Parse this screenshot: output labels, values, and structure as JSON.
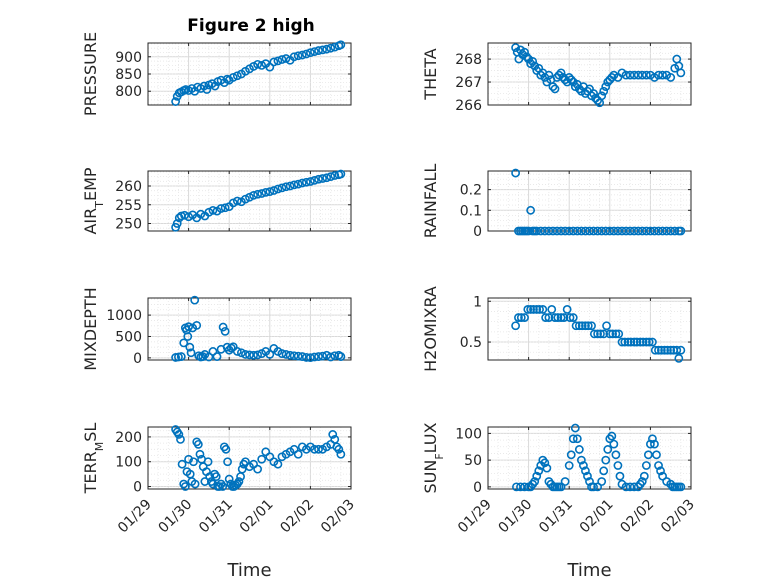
{
  "figure": {
    "title": "Figure 2 high",
    "marker_color": "#0072BD"
  },
  "chart_data": [
    {
      "id": "pressure",
      "type": "scatter",
      "ylabel": "PRESSURE",
      "ylabel_sub": "",
      "title": "Figure 2 high",
      "xlabel": "",
      "show_xticks": false,
      "xlim": [
        0,
        5
      ],
      "ylim": [
        760,
        940
      ],
      "yticks": [
        800,
        850,
        900
      ],
      "x": [
        0.68,
        0.72,
        0.77,
        0.82,
        0.88,
        0.93,
        1.0,
        1.08,
        1.15,
        1.22,
        1.3,
        1.38,
        1.45,
        1.5,
        1.58,
        1.65,
        1.72,
        1.8,
        1.88,
        1.95,
        2.0,
        2.1,
        2.2,
        2.3,
        2.4,
        2.5,
        2.6,
        2.7,
        2.8,
        2.9,
        3.0,
        3.1,
        3.2,
        3.3,
        3.4,
        3.5,
        3.6,
        3.7,
        3.8,
        3.9,
        4.0,
        4.1,
        4.2,
        4.3,
        4.4,
        4.5,
        4.6,
        4.7,
        4.75
      ],
      "y": [
        770,
        785,
        795,
        798,
        802,
        805,
        802,
        808,
        800,
        812,
        808,
        815,
        805,
        818,
        822,
        815,
        828,
        832,
        825,
        835,
        832,
        840,
        845,
        850,
        858,
        865,
        872,
        878,
        875,
        880,
        870,
        885,
        888,
        892,
        895,
        890,
        900,
        903,
        905,
        908,
        912,
        915,
        918,
        920,
        922,
        925,
        928,
        932,
        935
      ]
    },
    {
      "id": "theta",
      "type": "scatter",
      "ylabel": "THETA",
      "ylabel_sub": "",
      "title": "",
      "xlabel": "",
      "show_xticks": false,
      "xlim": [
        0,
        5
      ],
      "ylim": [
        266,
        268.7
      ],
      "yticks": [
        266,
        267,
        268
      ],
      "x": [
        0.68,
        0.72,
        0.76,
        0.8,
        0.85,
        0.9,
        0.95,
        1.0,
        1.05,
        1.1,
        1.15,
        1.2,
        1.25,
        1.3,
        1.35,
        1.4,
        1.45,
        1.5,
        1.55,
        1.6,
        1.65,
        1.7,
        1.75,
        1.8,
        1.85,
        1.9,
        1.95,
        2.0,
        2.05,
        2.1,
        2.15,
        2.2,
        2.25,
        2.3,
        2.35,
        2.4,
        2.45,
        2.5,
        2.55,
        2.6,
        2.65,
        2.7,
        2.75,
        2.8,
        2.85,
        2.9,
        2.95,
        3.0,
        3.05,
        3.1,
        3.2,
        3.3,
        3.4,
        3.5,
        3.6,
        3.7,
        3.8,
        3.9,
        4.0,
        4.1,
        4.2,
        4.3,
        4.4,
        4.5,
        4.6,
        4.65,
        4.7,
        4.75
      ],
      "y": [
        268.5,
        268.3,
        268.0,
        268.4,
        268.2,
        268.3,
        268.1,
        268.0,
        267.8,
        267.9,
        267.7,
        267.5,
        267.6,
        267.3,
        267.4,
        267.2,
        267.0,
        267.3,
        267.1,
        266.8,
        266.7,
        267.2,
        267.3,
        267.4,
        267.2,
        267.1,
        267.0,
        267.2,
        267.1,
        267.0,
        266.8,
        266.9,
        266.7,
        266.6,
        266.8,
        266.5,
        266.6,
        266.7,
        266.4,
        266.5,
        266.3,
        266.2,
        266.1,
        266.4,
        266.6,
        266.8,
        267.0,
        267.1,
        267.2,
        267.3,
        267.2,
        267.4,
        267.3,
        267.3,
        267.3,
        267.3,
        267.3,
        267.3,
        267.3,
        267.2,
        267.3,
        267.3,
        267.3,
        267.2,
        267.6,
        268.0,
        267.7,
        267.4
      ]
    },
    {
      "id": "airtemp",
      "type": "scatter",
      "ylabel": "AIR",
      "ylabel_sub": "T",
      "ylabel_rest": "EMP",
      "title": "",
      "xlabel": "",
      "show_xticks": false,
      "xlim": [
        0,
        5
      ],
      "ylim": [
        248,
        264
      ],
      "yticks": [
        250,
        255,
        260
      ],
      "x": [
        0.68,
        0.72,
        0.77,
        0.82,
        0.9,
        1.0,
        1.1,
        1.2,
        1.3,
        1.4,
        1.5,
        1.6,
        1.7,
        1.8,
        1.9,
        2.0,
        2.1,
        2.2,
        2.3,
        2.4,
        2.5,
        2.6,
        2.7,
        2.8,
        2.9,
        3.0,
        3.1,
        3.2,
        3.3,
        3.4,
        3.5,
        3.6,
        3.7,
        3.8,
        3.9,
        4.0,
        4.1,
        4.2,
        4.3,
        4.4,
        4.5,
        4.6,
        4.7,
        4.75
      ],
      "y": [
        249,
        250,
        251.5,
        252,
        252.2,
        251.8,
        252.3,
        251.5,
        252.5,
        252,
        253,
        253.5,
        253.3,
        254,
        254.2,
        254.5,
        255.5,
        256,
        255.8,
        256.5,
        257,
        257.5,
        257.8,
        258,
        258.3,
        258.5,
        258.8,
        259.2,
        259.5,
        259.8,
        260,
        260.3,
        260.5,
        260.8,
        261,
        261.2,
        261.5,
        261.8,
        262,
        262.2,
        262.5,
        262.8,
        263,
        263.2
      ]
    },
    {
      "id": "rainfall",
      "type": "scatter",
      "ylabel": "RAINFALL",
      "ylabel_sub": "",
      "title": "",
      "xlabel": "",
      "show_xticks": false,
      "xlim": [
        0,
        5
      ],
      "ylim": [
        0,
        0.29
      ],
      "yticks": [
        0,
        0.1,
        0.2
      ],
      "ytick_labels": [
        "0",
        "0.1",
        "0.2"
      ],
      "x": [
        0.68,
        0.75,
        0.8,
        0.85,
        0.9,
        0.95,
        1.0,
        1.05,
        1.1,
        1.15,
        1.2,
        1.3,
        1.4,
        1.5,
        1.6,
        1.7,
        1.8,
        1.9,
        2.0,
        2.1,
        2.2,
        2.3,
        2.4,
        2.5,
        2.6,
        2.7,
        2.8,
        2.9,
        3.0,
        3.1,
        3.2,
        3.3,
        3.4,
        3.5,
        3.6,
        3.7,
        3.8,
        3.9,
        4.0,
        4.1,
        4.2,
        4.3,
        4.4,
        4.5,
        4.6,
        4.7,
        4.75
      ],
      "y": [
        0.28,
        0,
        0,
        0,
        0,
        0,
        0,
        0.1,
        0,
        0,
        0,
        0,
        0,
        0,
        0,
        0,
        0,
        0,
        0,
        0,
        0,
        0,
        0,
        0,
        0,
        0,
        0,
        0,
        0,
        0,
        0,
        0,
        0,
        0,
        0,
        0,
        0,
        0,
        0,
        0,
        0,
        0,
        0,
        0,
        0,
        0,
        0
      ]
    },
    {
      "id": "mixdepth",
      "type": "scatter",
      "ylabel": "MIXDEPTH",
      "ylabel_sub": "",
      "title": "",
      "xlabel": "",
      "show_xticks": false,
      "xlim": [
        0,
        5
      ],
      "ylim": [
        -50,
        1400
      ],
      "yticks": [
        0,
        500,
        1000
      ],
      "x": [
        0.68,
        0.75,
        0.82,
        0.88,
        0.92,
        0.95,
        0.98,
        1.0,
        1.03,
        1.06,
        1.1,
        1.15,
        1.2,
        1.25,
        1.3,
        1.35,
        1.4,
        1.5,
        1.6,
        1.7,
        1.8,
        1.85,
        1.9,
        1.95,
        2.0,
        2.05,
        2.1,
        2.2,
        2.3,
        2.4,
        2.5,
        2.6,
        2.7,
        2.8,
        2.9,
        3.0,
        3.1,
        3.2,
        3.3,
        3.4,
        3.5,
        3.6,
        3.7,
        3.8,
        3.9,
        4.0,
        4.1,
        4.2,
        4.3,
        4.4,
        4.5,
        4.6,
        4.7,
        4.75
      ],
      "y": [
        10,
        20,
        30,
        350,
        700,
        650,
        500,
        730,
        250,
        120,
        700,
        1350,
        760,
        50,
        20,
        30,
        80,
        20,
        150,
        30,
        200,
        720,
        620,
        250,
        180,
        230,
        260,
        150,
        120,
        80,
        70,
        60,
        70,
        100,
        150,
        80,
        220,
        150,
        100,
        80,
        60,
        50,
        40,
        30,
        10,
        5,
        20,
        30,
        40,
        60,
        20,
        50,
        60,
        30
      ]
    },
    {
      "id": "h2omixra",
      "type": "scatter",
      "ylabel": "H2OMIXRA",
      "ylabel_sub": "",
      "title": "",
      "xlabel": "",
      "show_xticks": false,
      "xlim": [
        0,
        5
      ],
      "ylim": [
        0.28,
        1.04
      ],
      "yticks": [
        0.5,
        1
      ],
      "ytick_labels": [
        "0.5",
        "1"
      ],
      "x": [
        0.68,
        0.75,
        0.82,
        0.9,
        0.98,
        1.05,
        1.12,
        1.2,
        1.27,
        1.35,
        1.42,
        1.5,
        1.57,
        1.65,
        1.72,
        1.8,
        1.87,
        1.95,
        2.02,
        2.1,
        2.17,
        2.25,
        2.32,
        2.4,
        2.47,
        2.55,
        2.62,
        2.7,
        2.77,
        2.85,
        2.92,
        3.0,
        3.07,
        3.15,
        3.22,
        3.3,
        3.37,
        3.45,
        3.52,
        3.6,
        3.67,
        3.75,
        3.82,
        3.9,
        3.97,
        4.05,
        4.12,
        4.2,
        4.27,
        4.35,
        4.42,
        4.5,
        4.57,
        4.65,
        4.7,
        4.75
      ],
      "y": [
        0.7,
        0.8,
        0.8,
        0.8,
        0.9,
        0.9,
        0.9,
        0.9,
        0.9,
        0.9,
        0.8,
        0.8,
        0.9,
        0.8,
        0.8,
        0.8,
        0.8,
        0.9,
        0.8,
        0.8,
        0.7,
        0.7,
        0.7,
        0.7,
        0.7,
        0.7,
        0.6,
        0.6,
        0.6,
        0.6,
        0.7,
        0.6,
        0.6,
        0.6,
        0.6,
        0.5,
        0.5,
        0.5,
        0.5,
        0.5,
        0.5,
        0.5,
        0.5,
        0.5,
        0.5,
        0.5,
        0.4,
        0.4,
        0.4,
        0.4,
        0.4,
        0.4,
        0.4,
        0.4,
        0.3,
        0.4
      ]
    },
    {
      "id": "terrmsl",
      "type": "scatter",
      "ylabel": "TERR",
      "ylabel_sub": "M",
      "ylabel_rest": "SL",
      "title": "",
      "xlabel": "Time",
      "show_xticks": true,
      "xlim": [
        0,
        5
      ],
      "ylim": [
        -10,
        240
      ],
      "yticks": [
        0,
        100,
        200
      ],
      "x": [
        0.68,
        0.72,
        0.76,
        0.8,
        0.84,
        0.88,
        0.92,
        0.96,
        1.0,
        1.04,
        1.08,
        1.12,
        1.16,
        1.2,
        1.24,
        1.28,
        1.32,
        1.36,
        1.4,
        1.44,
        1.48,
        1.52,
        1.56,
        1.6,
        1.64,
        1.68,
        1.72,
        1.76,
        1.8,
        1.84,
        1.88,
        1.92,
        1.96,
        2.0,
        2.04,
        2.08,
        2.12,
        2.16,
        2.2,
        2.24,
        2.28,
        2.32,
        2.36,
        2.4,
        2.5,
        2.6,
        2.7,
        2.8,
        2.9,
        3.0,
        3.1,
        3.2,
        3.3,
        3.4,
        3.5,
        3.6,
        3.7,
        3.8,
        3.9,
        4.0,
        4.1,
        4.2,
        4.3,
        4.4,
        4.5,
        4.55,
        4.6,
        4.65,
        4.7,
        4.75
      ],
      "y": [
        230,
        220,
        210,
        190,
        90,
        10,
        0,
        60,
        110,
        50,
        20,
        100,
        10,
        180,
        170,
        130,
        110,
        80,
        20,
        60,
        100,
        40,
        20,
        10,
        50,
        40,
        0,
        0,
        10,
        0,
        160,
        150,
        100,
        30,
        10,
        0,
        0,
        5,
        10,
        20,
        40,
        70,
        90,
        100,
        80,
        90,
        70,
        110,
        140,
        120,
        100,
        90,
        120,
        130,
        140,
        150,
        130,
        160,
        150,
        160,
        150,
        150,
        150,
        160,
        170,
        210,
        190,
        160,
        150,
        130
      ]
    },
    {
      "id": "sunflux",
      "type": "scatter",
      "ylabel": "SUN",
      "ylabel_sub": "F",
      "ylabel_rest": "LUX",
      "title": "",
      "xlabel": "Time",
      "show_xticks": true,
      "xlim": [
        0,
        5
      ],
      "ylim": [
        -4,
        112
      ],
      "yticks": [
        0,
        50,
        100
      ],
      "x": [
        0.7,
        0.8,
        0.9,
        1.0,
        1.05,
        1.1,
        1.15,
        1.2,
        1.25,
        1.3,
        1.35,
        1.4,
        1.45,
        1.5,
        1.55,
        1.6,
        1.65,
        1.7,
        1.75,
        1.8,
        1.9,
        2.0,
        2.05,
        2.1,
        2.15,
        2.2,
        2.25,
        2.3,
        2.35,
        2.4,
        2.45,
        2.5,
        2.55,
        2.6,
        2.7,
        2.8,
        2.85,
        2.9,
        2.95,
        3.0,
        3.05,
        3.1,
        3.15,
        3.2,
        3.25,
        3.3,
        3.4,
        3.5,
        3.6,
        3.7,
        3.75,
        3.8,
        3.85,
        3.9,
        3.95,
        4.0,
        4.05,
        4.1,
        4.15,
        4.2,
        4.25,
        4.3,
        4.4,
        4.5,
        4.55,
        4.6,
        4.65,
        4.7,
        4.75
      ],
      "y": [
        0,
        0,
        0,
        0,
        0,
        5,
        10,
        20,
        30,
        40,
        50,
        45,
        35,
        10,
        5,
        0,
        0,
        0,
        0,
        0,
        10,
        40,
        60,
        90,
        110,
        90,
        70,
        50,
        40,
        30,
        20,
        10,
        0,
        0,
        0,
        10,
        30,
        50,
        70,
        90,
        95,
        80,
        60,
        40,
        20,
        5,
        0,
        0,
        0,
        0,
        5,
        10,
        20,
        40,
        60,
        80,
        90,
        80,
        60,
        40,
        30,
        20,
        10,
        5,
        0,
        0,
        0,
        0,
        0
      ]
    }
  ],
  "xticks": {
    "labels": [
      "01/29",
      "01/30",
      "01/31",
      "02/01",
      "02/02",
      "02/03"
    ],
    "values": [
      0,
      1,
      2,
      3,
      4,
      5
    ]
  }
}
